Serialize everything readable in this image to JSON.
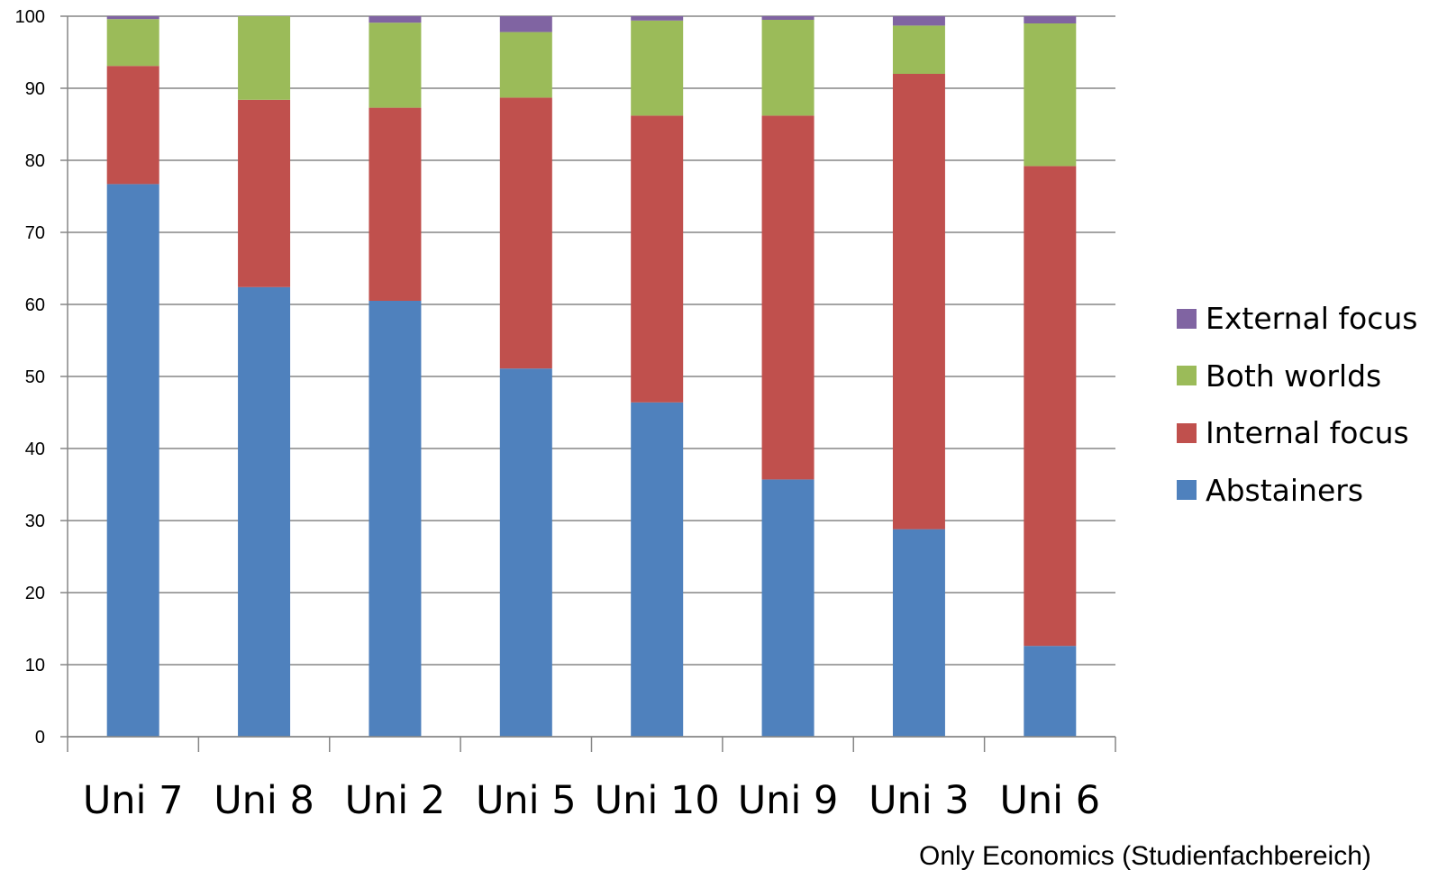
{
  "chart_data": {
    "type": "bar",
    "stacked": true,
    "categories": [
      "Uni 7",
      "Uni 8",
      "Uni 2",
      "Uni 5",
      "Uni 10",
      "Uni 9",
      "Uni 3",
      "Uni 6"
    ],
    "series": [
      {
        "name": "Abstainers",
        "color": "#4F81BD",
        "values": [
          76.7,
          62.4,
          60.5,
          51.1,
          46.4,
          35.7,
          28.8,
          12.6
        ]
      },
      {
        "name": "Internal focus",
        "color": "#C0504D",
        "values": [
          16.4,
          26.0,
          26.8,
          37.6,
          39.8,
          50.5,
          63.2,
          66.6
        ]
      },
      {
        "name": "Both worlds",
        "color": "#9BBB59",
        "values": [
          6.5,
          11.6,
          11.8,
          9.1,
          13.2,
          13.3,
          6.7,
          19.8
        ]
      },
      {
        "name": "External focus",
        "color": "#8064A2",
        "values": [
          0.4,
          0.0,
          0.9,
          2.2,
          0.6,
          0.5,
          1.3,
          1.0
        ]
      }
    ],
    "ylim": [
      0,
      100
    ],
    "yticks": [
      "0",
      "10",
      "20",
      "30",
      "40",
      "50",
      "60",
      "70",
      "80",
      "90",
      "100"
    ],
    "grid": true,
    "legend_position": "right",
    "footnote": "Only Economics (Studienfachbereich)"
  }
}
